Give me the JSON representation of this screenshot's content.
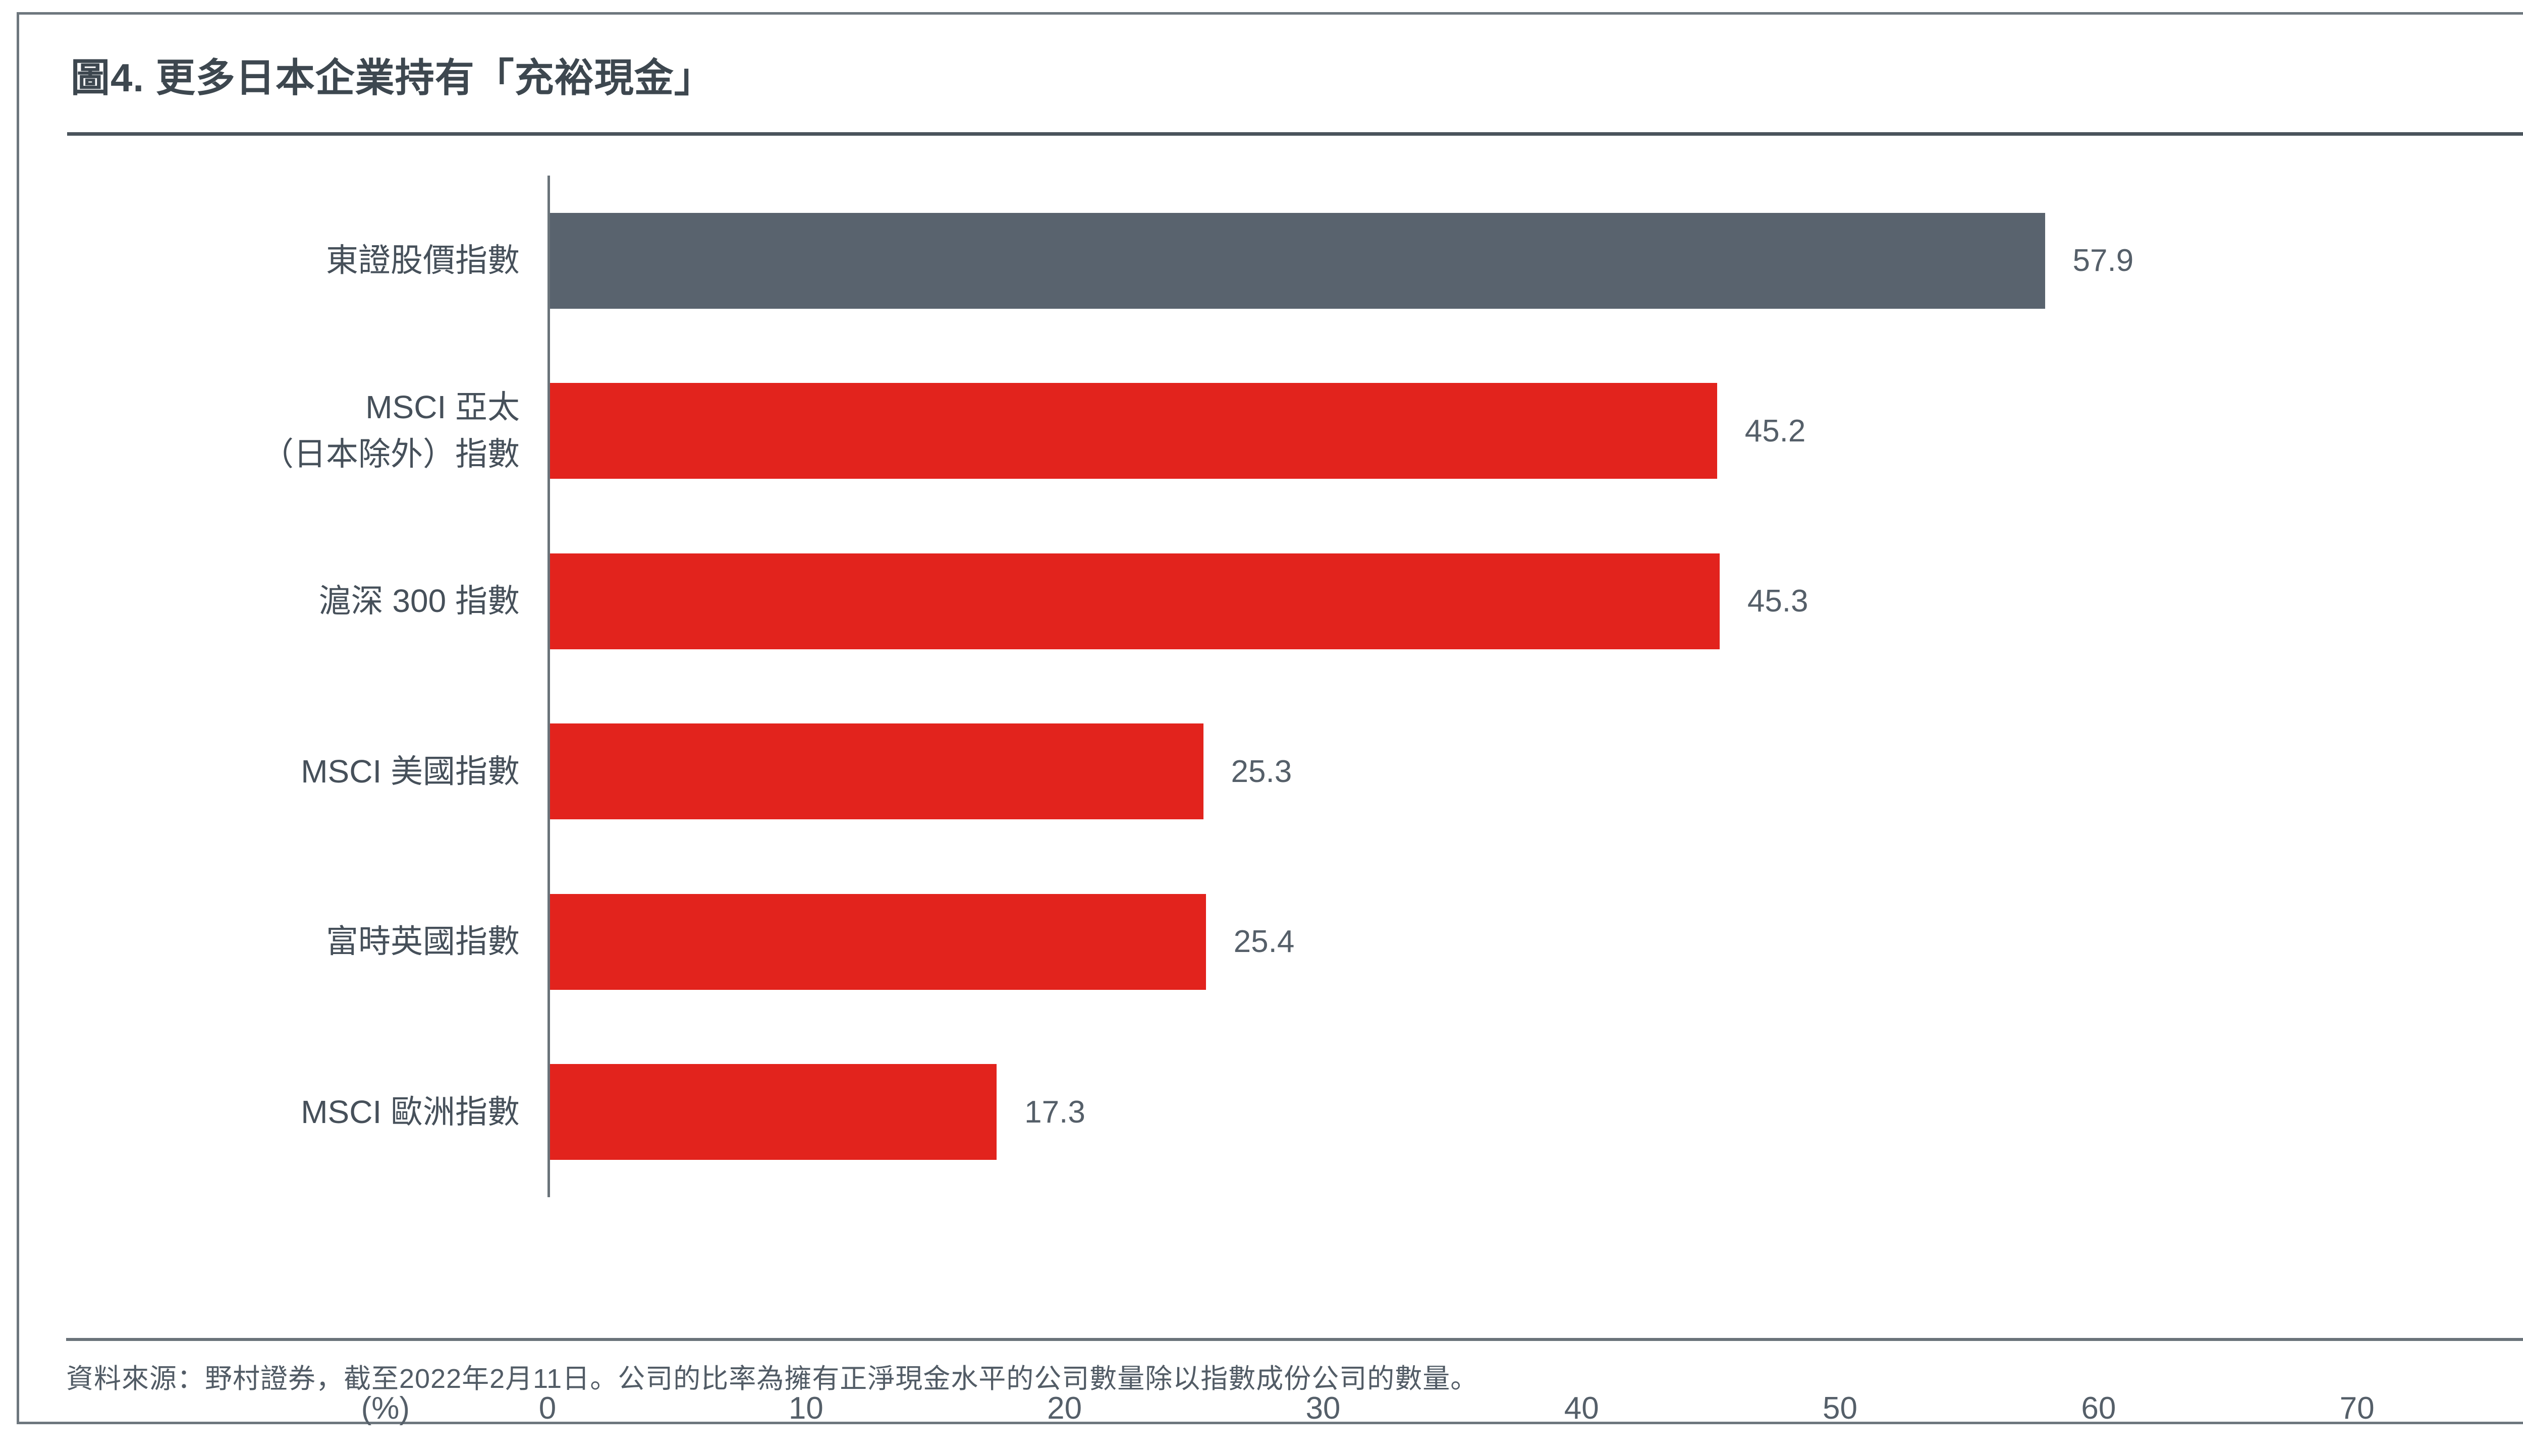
{
  "title": "圖4. 更多日本企業持有「充裕現金」",
  "source_note": "資料來源：野村證券，截至2022年2月11日。公司的比率為擁有正淨現金水平的公司數量除以指數成份公司的數量。",
  "axis_unit_label": "(%)",
  "colors": {
    "bar_red": "#E2231D",
    "bar_gray": "#59636E",
    "axis_line": "#6A737A",
    "frame_border": "#6E777E",
    "title_text": "#3D474F",
    "label_text": "#46505A",
    "value_text": "#555F69",
    "rule": "#4A545C"
  },
  "chart_data": {
    "type": "bar",
    "orientation": "horizontal",
    "title": "圖4. 更多日本企業持有「充裕現金」",
    "categories": [
      "東證股價指數",
      "MSCI 亞太\n（日本除外）指數",
      "滬深 300 指數",
      "MSCI 美國指數",
      "富時英國指數",
      "MSCI 歐洲指數"
    ],
    "values": [
      57.9,
      45.2,
      45.3,
      25.3,
      25.4,
      17.3
    ],
    "value_labels": [
      "57.9",
      "45.2",
      "45.3",
      "25.3",
      "25.4",
      "17.3"
    ],
    "bar_colors": [
      "#59636E",
      "#E2231D",
      "#E2231D",
      "#E2231D",
      "#E2231D",
      "#E2231D"
    ],
    "xlabel": "(%)",
    "x_ticks": [
      0,
      10,
      20,
      30,
      40,
      50,
      60,
      70
    ],
    "xlim": [
      0,
      78
    ],
    "grid": false,
    "legend": "none"
  }
}
